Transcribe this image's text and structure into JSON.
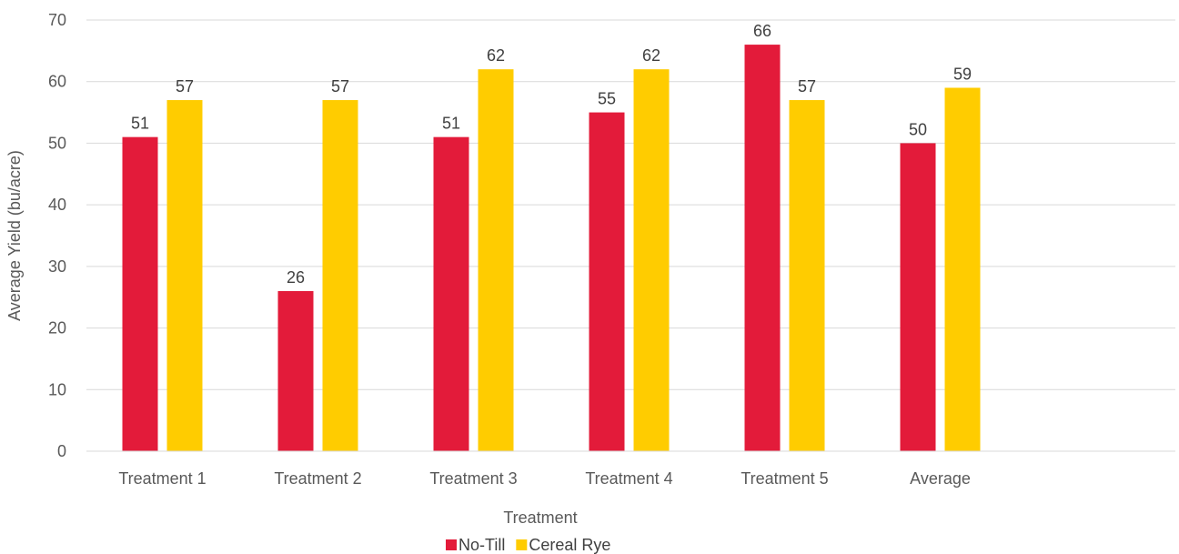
{
  "chart_data": {
    "type": "bar",
    "categories": [
      "Treatment 1",
      "Treatment 2",
      "Treatment 3",
      "Treatment 4",
      "Treatment 5",
      "Average"
    ],
    "series": [
      {
        "name": "No-Till",
        "color": "#E31B3A",
        "values": [
          51,
          26,
          51,
          55,
          66,
          50
        ]
      },
      {
        "name": "Cereal Rye",
        "color": "#FFCC00",
        "values": [
          57,
          57,
          62,
          62,
          57,
          59
        ]
      }
    ],
    "title": "",
    "xlabel": "Treatment",
    "ylabel": "Average Yield (bu/acre)",
    "ylim": [
      0,
      70
    ],
    "yticks": [
      0,
      10,
      20,
      30,
      40,
      50,
      60,
      70
    ],
    "grid": true,
    "legend_position": "bottom"
  }
}
